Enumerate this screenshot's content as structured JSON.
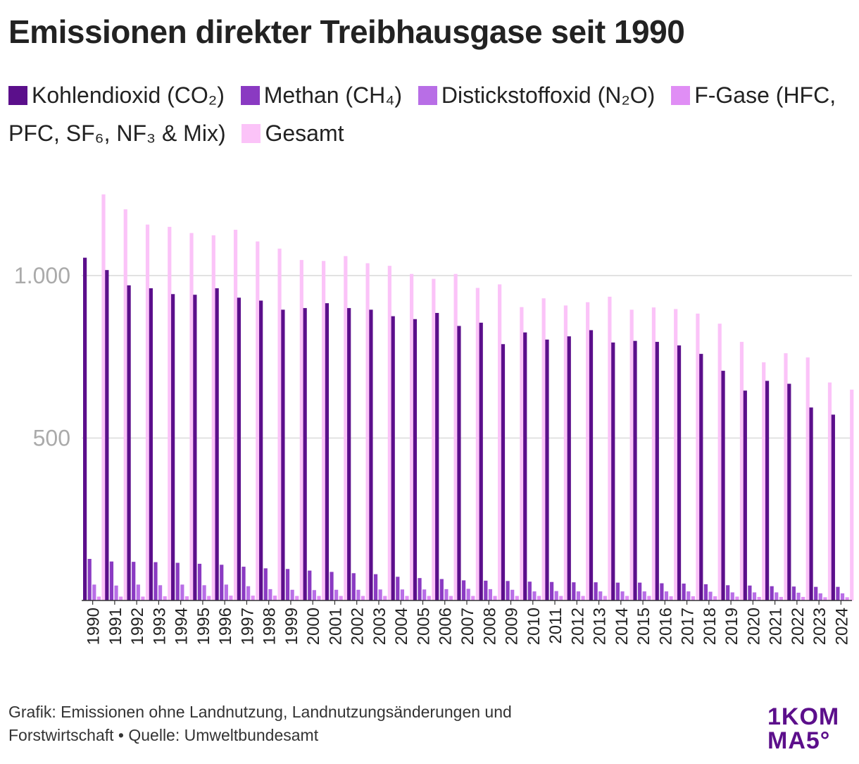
{
  "title": "Emissionen direkter Treibhausgase seit 1990",
  "legend": [
    {
      "label": "Kohlendioxid (CO₂)",
      "color": "#5b0f8b"
    },
    {
      "label": "Methan (CH₄)",
      "color": "#8a3ac2"
    },
    {
      "label": "Distickstoffoxid (N₂O)",
      "color": "#b86ee6"
    },
    {
      "label": "F-Gase (HFC, PFC, SF₆, NF₃ & Mix)",
      "color": "#e08ef5"
    },
    {
      "label": "Gesamt",
      "color": "#fbc3f8"
    }
  ],
  "footer": {
    "line1": "Grafik: Emissionen ohne Landnutzung, Landnutzungsänderungen und",
    "line2": "Forstwirtschaft • Quelle: Umweltbundesamt"
  },
  "logo": {
    "line1": "1KOM",
    "line2": "MA5°"
  },
  "chart_data": {
    "type": "bar",
    "title": "Emissionen direkter Treibhausgase seit 1990",
    "xlabel": "",
    "ylabel": "",
    "ylim": [
      0,
      1260
    ],
    "yticks": [
      500,
      1000
    ],
    "ytick_labels": [
      "500",
      "1.000"
    ],
    "grid": true,
    "categories": [
      "1990",
      "1991",
      "1992",
      "1993",
      "1994",
      "1995",
      "1996",
      "1997",
      "1998",
      "1999",
      "2000",
      "2001",
      "2002",
      "2003",
      "2004",
      "2005",
      "2006",
      "2007",
      "2008",
      "2009",
      "2010",
      "2011",
      "2012",
      "2013",
      "2014",
      "2015",
      "2016",
      "2017",
      "2018",
      "2019",
      "2020",
      "2021",
      "2022",
      "2023",
      "2024"
    ],
    "series": [
      {
        "name": "Kohlendioxid (CO₂)",
        "color": "#5b0f8b",
        "values": [
          1055,
          1017,
          970,
          961,
          943,
          941,
          961,
          932,
          923,
          895,
          900,
          915,
          900,
          895,
          875,
          866,
          885,
          845,
          855,
          789,
          825,
          803,
          813,
          832,
          794,
          799,
          796,
          785,
          759,
          707,
          646,
          676,
          667,
          594,
          572
        ]
      },
      {
        "name": "Methan (CH₄)",
        "color": "#8a3ac2",
        "values": [
          128,
          120,
          119,
          118,
          116,
          113,
          110,
          104,
          99,
          97,
          92,
          88,
          84,
          81,
          73,
          69,
          66,
          62,
          61,
          60,
          58,
          57,
          56,
          56,
          55,
          55,
          53,
          52,
          50,
          47,
          46,
          44,
          43,
          42,
          42
        ]
      },
      {
        "name": "Distickstoffoxid (N₂O)",
        "color": "#b86ee6",
        "values": [
          49,
          46,
          49,
          47,
          49,
          47,
          49,
          44,
          35,
          33,
          32,
          33,
          33,
          34,
          34,
          34,
          35,
          36,
          35,
          33,
          28,
          29,
          28,
          28,
          28,
          28,
          28,
          28,
          27,
          25,
          25,
          25,
          24,
          22,
          22
        ]
      },
      {
        "name": "F-Gase (HFC, PFC, SF₆, NF₃ & Mix)",
        "color": "#e08ef5",
        "values": [
          12,
          12,
          12,
          13,
          13,
          14,
          15,
          15,
          15,
          14,
          14,
          14,
          14,
          14,
          14,
          14,
          14,
          14,
          14,
          14,
          14,
          14,
          14,
          14,
          14,
          14,
          13,
          13,
          13,
          12,
          11,
          11,
          11,
          10,
          10
        ]
      },
      {
        "name": "Gesamt",
        "color": "#fbc3f8",
        "values": [
          1250,
          1204,
          1157,
          1150,
          1131,
          1124,
          1141,
          1105,
          1083,
          1048,
          1045,
          1060,
          1038,
          1030,
          1005,
          990,
          1005,
          962,
          973,
          903,
          930,
          908,
          918,
          935,
          895,
          902,
          897,
          883,
          852,
          796,
          733,
          761,
          748,
          671,
          649
        ]
      }
    ]
  }
}
